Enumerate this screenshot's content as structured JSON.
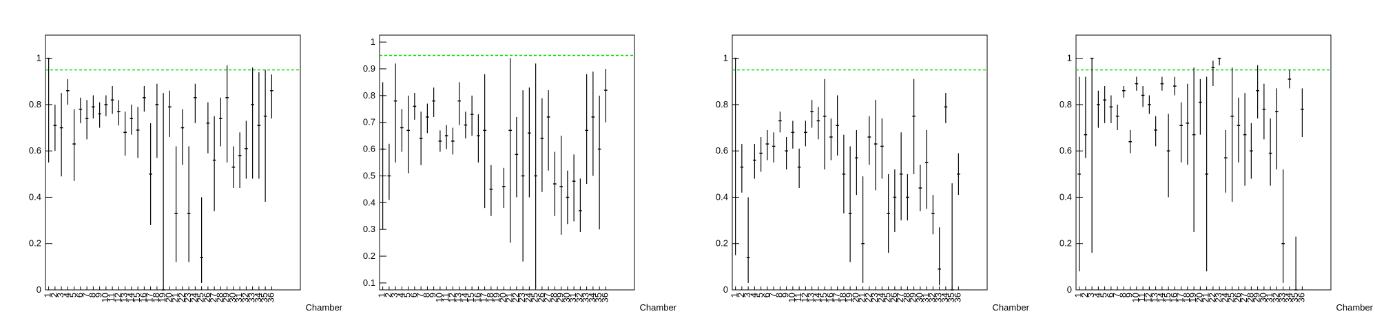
{
  "chart_data": [
    {
      "type": "errorbar",
      "x_label": "Chamber",
      "color": "#000000",
      "ref_line": 0.95,
      "ref_color": "#00dd00",
      "x": [
        1,
        2,
        3,
        4,
        5,
        6,
        7,
        8,
        9,
        10,
        11,
        12,
        13,
        14,
        15,
        16,
        17,
        18,
        19,
        20,
        21,
        22,
        23,
        24,
        25,
        26,
        27,
        28,
        29,
        30,
        31,
        32,
        33,
        34,
        35,
        36
      ],
      "xlim": [
        0.5,
        40.5
      ],
      "ylim": [
        0,
        1.1
      ],
      "yticks": [
        0,
        0.2,
        0.4,
        0.6,
        0.8,
        1
      ],
      "values": [
        1.0,
        0.71,
        0.7,
        0.86,
        0.63,
        0.78,
        0.74,
        0.79,
        0.76,
        0.8,
        0.82,
        0.77,
        0.68,
        0.74,
        0.69,
        0.83,
        0.5,
        0.8,
        0.0,
        0.79,
        0.33,
        0.7,
        0.33,
        0.83,
        0.14,
        0.72,
        0.56,
        0.74,
        0.83,
        0.53,
        0.58,
        0.61,
        0.8,
        0.71,
        0.75,
        0.86
      ],
      "err_low": [
        0.45,
        0.11,
        0.21,
        0.06,
        0.16,
        0.06,
        0.09,
        0.05,
        0.06,
        0.05,
        0.06,
        0.06,
        0.1,
        0.07,
        0.12,
        0.06,
        0.22,
        0.23,
        0,
        0.13,
        0.21,
        0.16,
        0.21,
        0.11,
        0.11,
        0.13,
        0.22,
        0.12,
        0.28,
        0.09,
        0.14,
        0.13,
        0.32,
        0.23,
        0.37,
        0.12
      ],
      "err_high": [
        0,
        0.09,
        0.15,
        0.05,
        0.15,
        0.05,
        0.08,
        0.05,
        0.05,
        0.04,
        0.06,
        0.05,
        0.09,
        0.06,
        0.1,
        0.05,
        0.22,
        0.09,
        0.85,
        0.07,
        0.29,
        0.08,
        0.29,
        0.06,
        0.26,
        0.09,
        0.19,
        0.09,
        0.14,
        0.09,
        0.1,
        0.12,
        0.16,
        0.23,
        0.2,
        0.07
      ]
    },
    {
      "type": "errorbar",
      "x_label": "Chamber",
      "color": "#000000",
      "ref_line": 0.95,
      "ref_color": "#00dd00",
      "x": [
        1,
        2,
        3,
        4,
        5,
        6,
        7,
        8,
        9,
        10,
        11,
        12,
        13,
        14,
        15,
        16,
        17,
        18,
        19,
        20,
        21,
        22,
        23,
        24,
        25,
        26,
        27,
        28,
        29,
        30,
        31,
        32,
        33,
        34,
        35,
        36
      ],
      "xlim": [
        0.5,
        40.5
      ],
      "ylim": [
        0.074,
        1.026
      ],
      "yticks": [
        0.1,
        0.2,
        0.3,
        0.4,
        0.5,
        0.6,
        0.7,
        0.8,
        0.9,
        1
      ],
      "values": [
        0.6,
        0.5,
        0.78,
        0.68,
        0.67,
        0.76,
        0.64,
        0.72,
        0.78,
        0.63,
        0.65,
        0.63,
        0.78,
        0.69,
        0.73,
        0.65,
        0.67,
        0.45,
        null,
        0.46,
        0.67,
        0.58,
        0.5,
        0.66,
        0.5,
        0.64,
        0.72,
        0.47,
        0.46,
        0.42,
        0.48,
        0.37,
        0.67,
        0.72,
        0.6,
        0.82
      ],
      "err_low": [
        0.3,
        0.09,
        0.23,
        0.09,
        0.16,
        0.05,
        0.1,
        0.06,
        0.06,
        0.04,
        0.05,
        0.05,
        0.09,
        0.05,
        0.08,
        0.1,
        0.29,
        0.1,
        null,
        0.08,
        0.42,
        0.16,
        0.32,
        0.24,
        0.42,
        0.2,
        0.2,
        0.12,
        0.18,
        0.1,
        0.15,
        0.08,
        0.2,
        0.22,
        0.3,
        0.12
      ],
      "err_high": [
        0.25,
        0.12,
        0.14,
        0.07,
        0.13,
        0.05,
        0.1,
        0.05,
        0.05,
        0.04,
        0.04,
        0.05,
        0.07,
        0.05,
        0.07,
        0.08,
        0.21,
        0.09,
        null,
        0.07,
        0.27,
        0.14,
        0.32,
        0.17,
        0.42,
        0.15,
        0.1,
        0.12,
        0.19,
        0.1,
        0.1,
        0.12,
        0.21,
        0.17,
        0.2,
        0.08
      ]
    },
    {
      "type": "errorbar",
      "x_label": "Chamber",
      "color": "#000000",
      "ref_line": 0.95,
      "ref_color": "#00dd00",
      "x": [
        1,
        2,
        3,
        4,
        5,
        6,
        7,
        8,
        9,
        10,
        11,
        12,
        13,
        14,
        15,
        16,
        17,
        18,
        19,
        20,
        21,
        22,
        23,
        24,
        25,
        26,
        27,
        28,
        29,
        30,
        31,
        32,
        33,
        34,
        35,
        36
      ],
      "xlim": [
        0.5,
        40.5
      ],
      "ylim": [
        0,
        1.1
      ],
      "yticks": [
        0,
        0.2,
        0.4,
        0.6,
        0.8,
        1
      ],
      "values": [
        1.0,
        0.53,
        0.14,
        0.56,
        0.59,
        0.63,
        0.62,
        0.73,
        0.6,
        0.68,
        0.53,
        0.68,
        0.77,
        0.73,
        0.75,
        0.66,
        0.71,
        0.5,
        0.33,
        0.57,
        0.2,
        0.66,
        0.63,
        0.62,
        0.33,
        0.4,
        0.5,
        0.4,
        0.75,
        0.44,
        0.55,
        0.33,
        0.09,
        0.79,
        0.0,
        0.5
      ],
      "err_low": [
        0.85,
        0.11,
        0.11,
        0.08,
        0.08,
        0.07,
        0.07,
        0.05,
        0.08,
        0.07,
        0.09,
        0.06,
        0.07,
        0.08,
        0.23,
        0.1,
        0.13,
        0.17,
        0.21,
        0.16,
        0.17,
        0.12,
        0.2,
        0.14,
        0.17,
        0.15,
        0.2,
        0.1,
        0.25,
        0.1,
        0.2,
        0.09,
        0.07,
        0.07,
        0,
        0.09
      ],
      "err_high": [
        0,
        0.1,
        0.26,
        0.07,
        0.07,
        0.06,
        0.06,
        0.04,
        0.06,
        0.05,
        0.08,
        0.05,
        0.05,
        0.06,
        0.16,
        0.08,
        0.13,
        0.17,
        0.29,
        0.12,
        0.29,
        0.09,
        0.19,
        0.12,
        0.17,
        0.12,
        0.18,
        0.1,
        0.16,
        0.1,
        0.14,
        0.08,
        0.18,
        0.06,
        0.46,
        0.09
      ]
    },
    {
      "type": "errorbar",
      "x_label": "Chamber",
      "color": "#000000",
      "ref_line": 0.95,
      "ref_color": "#00dd00",
      "x": [
        1,
        2,
        3,
        4,
        5,
        6,
        7,
        8,
        9,
        10,
        11,
        12,
        13,
        14,
        15,
        16,
        17,
        18,
        19,
        20,
        21,
        22,
        23,
        24,
        25,
        26,
        27,
        28,
        29,
        30,
        31,
        32,
        33,
        34,
        35,
        36
      ],
      "xlim": [
        0.5,
        40.5
      ],
      "ylim": [
        0,
        1.1
      ],
      "yticks": [
        0,
        0.2,
        0.4,
        0.6,
        0.8,
        1
      ],
      "values": [
        0.5,
        0.67,
        1.0,
        0.8,
        0.82,
        0.79,
        0.75,
        0.86,
        0.64,
        0.89,
        0.84,
        0.8,
        0.69,
        0.89,
        0.6,
        0.88,
        0.71,
        0.72,
        0.67,
        0.81,
        0.5,
        0.96,
        1.0,
        0.57,
        0.75,
        0.71,
        0.67,
        0.6,
        0.86,
        0.78,
        0.59,
        0.77,
        0.2,
        0.91,
        0.0,
        0.78
      ],
      "err_low": [
        0.42,
        0.1,
        0.84,
        0.1,
        0.1,
        0.07,
        0.06,
        0.03,
        0.05,
        0.03,
        0.05,
        0.04,
        0.07,
        0.03,
        0.2,
        0.04,
        0.16,
        0.18,
        0.42,
        0.14,
        0.42,
        0.08,
        0.03,
        0.15,
        0.37,
        0.16,
        0.22,
        0.12,
        0.12,
        0.13,
        0.14,
        0.25,
        0.17,
        0.04,
        0,
        0.12
      ],
      "err_high": [
        0.42,
        0.25,
        0,
        0.06,
        0.06,
        0.05,
        0.05,
        0.02,
        0.05,
        0.03,
        0.04,
        0.04,
        0.06,
        0.03,
        0.16,
        0.04,
        0.1,
        0.17,
        0.29,
        0.1,
        0.42,
        0.03,
        0,
        0.12,
        0.21,
        0.12,
        0.18,
        0.12,
        0.11,
        0.11,
        0.15,
        0.1,
        0.32,
        0.04,
        0.23,
        0.09
      ]
    }
  ]
}
